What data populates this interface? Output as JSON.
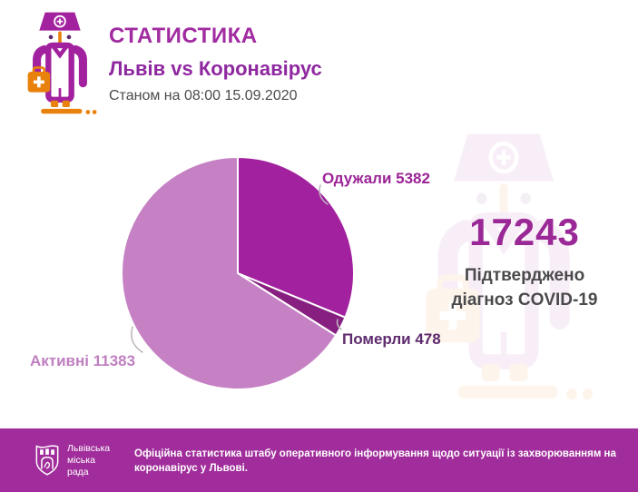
{
  "header": {
    "title": "СТАТИСТИКА",
    "subtitle": "Львів vs Коронавірус",
    "as_of": "Станом на 08:00 15.09.2020"
  },
  "chart_data": {
    "type": "pie",
    "title": "Львів vs Коронавірус",
    "subtitle": "Станом на 08:00 15.09.2020",
    "total": 17243,
    "start_angle_deg": 0,
    "direction": "clockwise",
    "slices": [
      {
        "label": "Одужали",
        "value": 5382,
        "color": "#a2219e"
      },
      {
        "label": "Померли",
        "value": 478,
        "color": "#871f80"
      },
      {
        "label": "Активні",
        "value": 11383,
        "color": "#c581c4"
      }
    ],
    "slice_stroke": "#ffffff"
  },
  "pie_labels": {
    "recovered": "Одужали 5382",
    "died": "Померли 478",
    "active": "Активні 11383"
  },
  "total_block": {
    "value": "17243",
    "caption_line1": "Підтверджено",
    "caption_line2": "діагноз COVID-19"
  },
  "footer": {
    "org_line1": "Львівська",
    "org_line2": "міська",
    "org_line3": "рада",
    "text": "Офіційна статистика штабу оперативного інформування щодо ситуації із захворюванням на коронавірус у Львові."
  },
  "colors": {
    "brand_magenta": "#a12ba0",
    "subtitle_purple": "#8f28a0",
    "total_magenta": "#9a2896",
    "caption_gray": "#4a4a4c",
    "date_gray": "#4b4b4d",
    "footer_bg": "#a02d9b",
    "icon_orange": "#e8820c",
    "connector_gray": "#bdb4bd"
  }
}
